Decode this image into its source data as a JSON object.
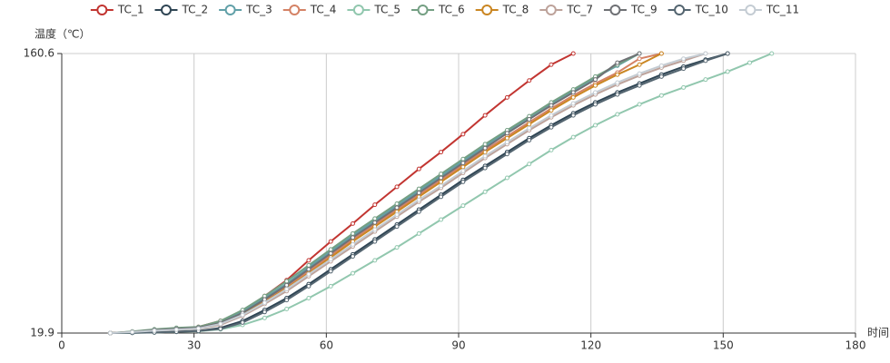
{
  "chart_data": {
    "type": "line",
    "y_label": "温度（℃）",
    "x_label": "时间",
    "x": [
      11,
      16,
      21,
      26,
      31,
      36,
      41,
      46,
      51,
      56,
      61,
      66,
      71,
      76,
      81,
      86,
      91,
      96,
      101,
      106,
      111,
      116,
      121,
      126,
      131,
      136,
      141,
      146,
      151,
      156,
      161
    ],
    "xlim": [
      0,
      180
    ],
    "xticks": [
      0,
      30,
      60,
      90,
      120,
      150,
      180
    ],
    "ylim": [
      19.9,
      160.6
    ],
    "yticks": [
      19.9,
      160.6
    ],
    "grid": true,
    "legend": "top",
    "series": [
      {
        "name": "TC_1",
        "color": "#c23531",
        "values": [
          19.9,
          20.5,
          21.2,
          21.8,
          23,
          26,
          31,
          38.5,
          46.5,
          56.5,
          66,
          75,
          84.5,
          93.5,
          102.5,
          111,
          120,
          129.5,
          138.5,
          147,
          155,
          160.6,
          null,
          null,
          null,
          null,
          null,
          null,
          null,
          null,
          null
        ]
      },
      {
        "name": "TC_2",
        "color": "#2f4554",
        "values": [
          19.9,
          20,
          20.3,
          20.7,
          21,
          22.5,
          26,
          31.5,
          37.5,
          44.5,
          52,
          59.5,
          67,
          74.5,
          82,
          89.5,
          97,
          104,
          111,
          118,
          124.5,
          130.5,
          136,
          141,
          145.5,
          150,
          154,
          157.5,
          160.6,
          null,
          null
        ]
      },
      {
        "name": "TC_3",
        "color": "#61a0a8",
        "values": [
          19.9,
          20.6,
          21.6,
          22.2,
          22.8,
          25.5,
          30.8,
          37.5,
          44.8,
          53,
          61,
          69,
          76.5,
          84,
          91.5,
          99,
          106.5,
          114,
          121.5,
          128.5,
          135.5,
          142,
          148.5,
          154.5,
          160.6,
          null,
          null,
          null,
          null,
          null,
          null
        ]
      },
      {
        "name": "TC_4",
        "color": "#d48265",
        "values": [
          19.9,
          20.5,
          21.3,
          21.9,
          22.4,
          24.8,
          29.8,
          36.2,
          43.2,
          51,
          59,
          67,
          74.5,
          82,
          89.5,
          97,
          104.5,
          112,
          119,
          126,
          133,
          139.5,
          145.5,
          151,
          158,
          160.6,
          null,
          null,
          null,
          null,
          null
        ]
      },
      {
        "name": "TC_5",
        "color": "#91c7ae",
        "values": [
          19.9,
          20,
          20.2,
          20.5,
          20.8,
          21.8,
          24,
          27.5,
          32,
          37.5,
          43.5,
          50,
          56.5,
          63,
          70,
          77,
          84,
          91,
          98,
          105,
          112,
          118.5,
          124.5,
          130,
          135,
          139.5,
          143.5,
          147.5,
          151.5,
          156,
          160.6
        ]
      },
      {
        "name": "TC_6",
        "color": "#749f83",
        "values": [
          19.9,
          20.7,
          21.8,
          22.5,
          23,
          26,
          31.5,
          38.5,
          46,
          54,
          62,
          70,
          77.5,
          85,
          92.5,
          100,
          107.5,
          115,
          122,
          129,
          136,
          142.5,
          149,
          155,
          160.6,
          null,
          null,
          null,
          null,
          null,
          null
        ]
      },
      {
        "name": "TC_8",
        "color": "#ca8622",
        "values": [
          19.9,
          20.4,
          21.2,
          21.8,
          22.3,
          24.5,
          29.3,
          35.5,
          42.5,
          50,
          58,
          66,
          73.5,
          81,
          88.5,
          96,
          103.5,
          111,
          118,
          125,
          132,
          138.5,
          144.5,
          150,
          155,
          160.6,
          null,
          null,
          null,
          null,
          null
        ]
      },
      {
        "name": "TC_7",
        "color": "#bda29a",
        "values": [
          19.9,
          20.3,
          21,
          21.5,
          22,
          24,
          28.5,
          34.5,
          41,
          48.5,
          56,
          63.5,
          71,
          78.5,
          86,
          93,
          100.5,
          108,
          115,
          122,
          128.5,
          134.5,
          140,
          145,
          149.5,
          153.5,
          157,
          160.6,
          null,
          null,
          null
        ]
      },
      {
        "name": "TC_9",
        "color": "#6e7074",
        "values": [
          19.9,
          20.5,
          21.4,
          22,
          22.6,
          25,
          30,
          36.8,
          44,
          52,
          60,
          68,
          75.5,
          83,
          90.5,
          98,
          105.5,
          113,
          120.5,
          127.5,
          134.5,
          141,
          147.5,
          156,
          160.6,
          null,
          null,
          null,
          null,
          null,
          null
        ]
      },
      {
        "name": "TC_10",
        "color": "#546570",
        "values": [
          19.9,
          20,
          20.2,
          20.5,
          20.9,
          22,
          25.2,
          30.5,
          36.5,
          43.5,
          51,
          58.5,
          66,
          73.5,
          81,
          88.5,
          96,
          103,
          110,
          117,
          123.5,
          129.5,
          135,
          140,
          144.5,
          149,
          153,
          157,
          160.6,
          null,
          null
        ]
      },
      {
        "name": "TC_11",
        "color": "#c4ccd3",
        "values": [
          19.9,
          20.4,
          21.1,
          21.6,
          22.2,
          24.5,
          29,
          35.2,
          42,
          49.5,
          57,
          64.5,
          72,
          79.5,
          87,
          94,
          101.5,
          109,
          116,
          123,
          129.5,
          135.5,
          141,
          146,
          150.5,
          154.5,
          158,
          160.6,
          null,
          null,
          null
        ]
      }
    ]
  }
}
